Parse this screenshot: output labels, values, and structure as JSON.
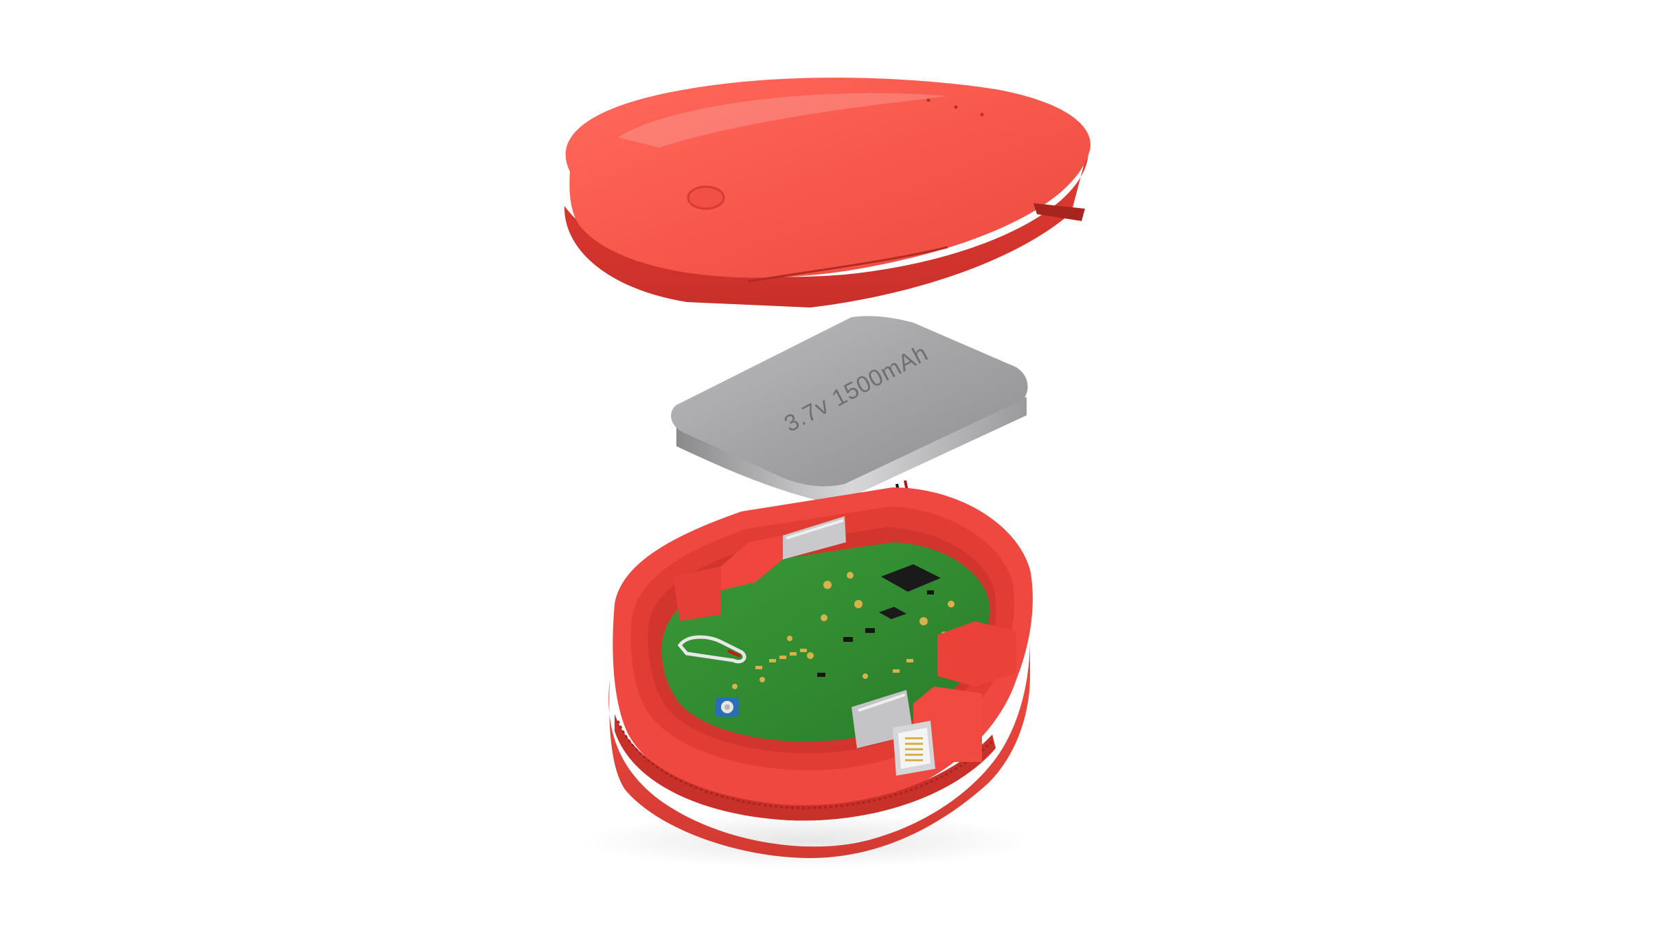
{
  "scene": {
    "background_color": "#ffffff",
    "shell_color": "#f0473f",
    "shell_dark_color": "#d6362f",
    "pcb_color": "#2e8a2e",
    "battery_color": "#a9a9ab"
  },
  "battery": {
    "label": "3.7v 1500mAh"
  }
}
